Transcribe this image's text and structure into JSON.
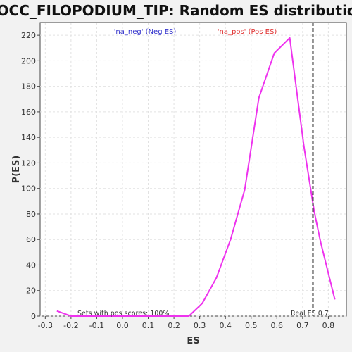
{
  "chart_data": {
    "type": "line",
    "title": "GOCC_FILOPODIUM_TIP: Random ES distribution",
    "xlabel": "ES",
    "ylabel": "P(ES)",
    "xlim": [
      -0.32,
      0.87
    ],
    "ylim": [
      0,
      230
    ],
    "xticks": [
      -0.3,
      -0.2,
      -0.1,
      0.0,
      0.1,
      0.2,
      0.3,
      0.4,
      0.5,
      0.6,
      0.7,
      0.8
    ],
    "xtick_labels": [
      "-0.3",
      "-0.2",
      "-0.1",
      "0.0",
      "0.1",
      "0.2",
      "0.3",
      "0.4",
      "0.5",
      "0.6",
      "0.7",
      "0.8"
    ],
    "yticks": [
      0,
      20,
      40,
      60,
      80,
      100,
      120,
      140,
      160,
      180,
      200,
      220
    ],
    "ytick_labels": [
      "0",
      "20",
      "40",
      "60",
      "80",
      "100",
      "120",
      "140",
      "160",
      "180",
      "200",
      "220"
    ],
    "grid": true,
    "series": [
      {
        "color": "#ee33ee",
        "x": [
          -0.255,
          -0.2,
          -0.145,
          -0.09,
          -0.035,
          0.02,
          0.075,
          0.13,
          0.185,
          0.24,
          0.258,
          0.31,
          0.365,
          0.42,
          0.475,
          0.53,
          0.59,
          0.65,
          0.705,
          0.745,
          0.77,
          0.825
        ],
        "y": [
          4,
          0,
          0,
          0,
          0,
          0,
          0,
          0,
          0,
          0,
          0,
          10,
          30,
          60,
          99,
          171,
          206,
          218,
          133,
          82,
          58,
          13
        ]
      }
    ],
    "legend": [
      {
        "label": "'na_neg' (Neg ES)",
        "color": "#3333cc"
      },
      {
        "label": "'na_pos' (Pos ES)",
        "color": "#e03030"
      }
    ],
    "real_es": {
      "x": 0.74,
      "label": "Real ES 0.7"
    },
    "annotation": "Sets with pos scores: 100%"
  }
}
